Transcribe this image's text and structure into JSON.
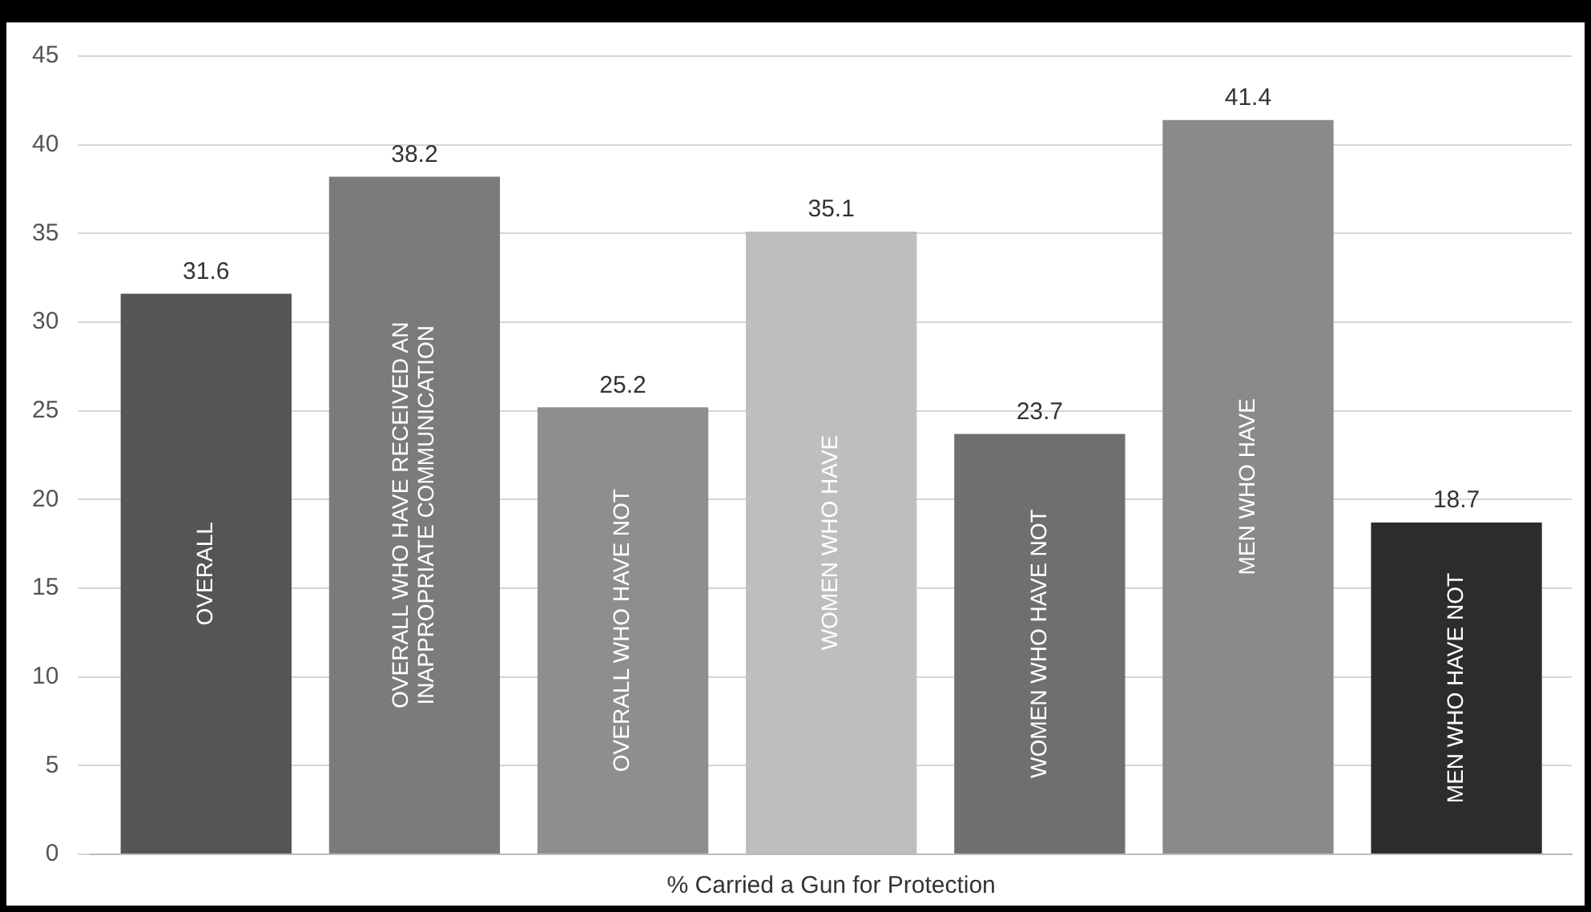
{
  "chart_data": {
    "type": "bar",
    "categories": [
      "% Carried a Gun for Protection"
    ],
    "series": [
      {
        "name": "OVERALL",
        "color": "#555555",
        "values": [
          31.6
        ]
      },
      {
        "name": "OVERALL WHO HAVE RECEIVED AN INAPPROPRIATE COMMUNICATION",
        "color": "#7b7b7b",
        "values": [
          38.2
        ]
      },
      {
        "name": "OVERALL WHO HAVE NOT",
        "color": "#8e8e8e",
        "values": [
          25.2
        ]
      },
      {
        "name": "WOMEN WHO HAVE",
        "color": "#bebebe",
        "values": [
          35.1
        ]
      },
      {
        "name": "WOMEN WHO HAVE NOT",
        "color": "#6f6f6f",
        "values": [
          23.7
        ]
      },
      {
        "name": "MEN WHO HAVE",
        "color": "#8a8a8a",
        "values": [
          41.4
        ]
      },
      {
        "name": "MEN WHO HAVE NOT",
        "color": "#2c2c2c",
        "values": [
          18.7
        ]
      }
    ],
    "ylim": [
      0,
      45
    ],
    "yticks": [
      0,
      5,
      10,
      15,
      20,
      25,
      30,
      35,
      40,
      45
    ],
    "grid": "y",
    "data_labels": true,
    "legend": false
  }
}
